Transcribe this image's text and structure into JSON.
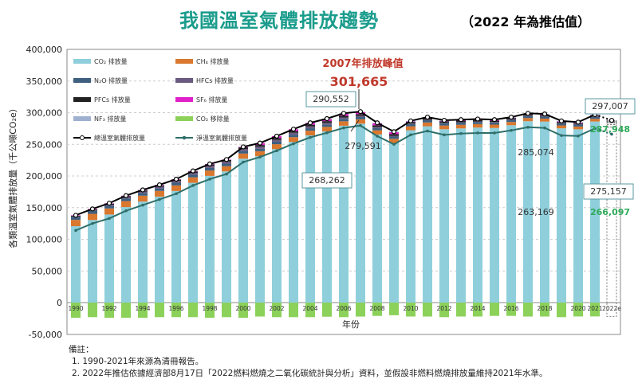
{
  "header": {
    "title": "我國溫室氣體排放趨勢",
    "subtitle": "（2022 年為推估值）"
  },
  "chart_data": {
    "type": "bar",
    "title": "我國溫室氣體排放趨勢",
    "xlabel": "年份",
    "ylabel": "各類溫室氣體排放量（千公噸CO₂e）",
    "ylim": [
      -50000,
      400000
    ],
    "yticks": [
      "-50,000",
      "0",
      "50,000",
      "100,000",
      "150,000",
      "200,000",
      "250,000",
      "300,000",
      "350,000",
      "400,000"
    ],
    "grid": true,
    "legend_position": "top-left",
    "categories": [
      1990,
      1991,
      1992,
      1993,
      1994,
      1995,
      1996,
      1997,
      1998,
      1999,
      2000,
      2001,
      2002,
      2003,
      2004,
      2005,
      2006,
      2007,
      2008,
      2009,
      2010,
      2011,
      2012,
      2013,
      2014,
      2015,
      2016,
      2017,
      2018,
      2019,
      2020,
      2021,
      2022
    ],
    "xtick_labels": [
      "1990",
      "1992",
      "1994",
      "1996",
      "1998",
      "2000",
      "2002",
      "2004",
      "2006",
      "2008",
      "2010",
      "2012",
      "2014",
      "2016",
      "2018",
      "2020",
      "2021",
      "2022e"
    ],
    "stack_series": [
      {
        "name": "CO₂ 排放量",
        "color": "#8fcfdc",
        "key": "co2"
      },
      {
        "name": "CH₄ 排放量",
        "color": "#d9782e",
        "key": "ch4"
      },
      {
        "name": "N₂O 排放量",
        "color": "#3f5f7f",
        "key": "n2o"
      },
      {
        "name": "HFCs 排放量",
        "color": "#6a5a80",
        "key": "hfc"
      },
      {
        "name": "PFCs 排放量",
        "color": "#222222",
        "key": "pfc"
      },
      {
        "name": "SF₆ 排放量",
        "color": "#e020c8",
        "key": "sf6"
      },
      {
        "name": "NF₃ 排放量",
        "color": "#9fb0d0",
        "key": "nf3"
      }
    ],
    "removal_series": {
      "name": "CO₂ 移除量",
      "color": "#8cd15a"
    },
    "total_series": {
      "name": "總溫室氣體排放量",
      "color": "#000000",
      "values": [
        138000,
        148000,
        157000,
        169000,
        178000,
        186000,
        195000,
        208000,
        219000,
        226000,
        246000,
        252000,
        263000,
        274000,
        284000,
        290552,
        299000,
        301665,
        284000,
        270000,
        287000,
        293000,
        288000,
        289000,
        290000,
        289000,
        293000,
        299000,
        298000,
        287000,
        285074,
        297007,
        287948
      ]
    },
    "net_series": {
      "name": "淨溫室氣體排放量",
      "color": "#2e6f6a",
      "values": [
        114000,
        125000,
        133000,
        145000,
        154000,
        163000,
        172000,
        185000,
        195000,
        203000,
        222000,
        230000,
        240000,
        251000,
        261000,
        268262,
        276000,
        279591,
        263000,
        250000,
        265000,
        271000,
        265000,
        267000,
        268000,
        268000,
        272000,
        277000,
        276000,
        264000,
        263169,
        275157,
        266097
      ]
    },
    "annotations": [
      {
        "text": "2007年排放峰值",
        "color": "#c0392b"
      },
      {
        "text": "301,665",
        "color": "#c0392b"
      },
      {
        "text": "290,552"
      },
      {
        "text": "268,262"
      },
      {
        "text": "279,591"
      },
      {
        "text": "285,074"
      },
      {
        "text": "263,169"
      },
      {
        "text": "297,007"
      },
      {
        "text": "275,157"
      },
      {
        "text": "287,948",
        "color": "#2eaa5a"
      },
      {
        "text": "266,097",
        "color": "#2eaa5a"
      }
    ]
  },
  "notes": {
    "heading": "備註：",
    "lines": [
      "1. 1990-2021年來源為清冊報告。",
      "2. 2022年推估依據經濟部8月17日「2022燃料燃燒之二氧化碳統計與分析」資料，並假設非燃料燃燒排放量維持2021年水準。"
    ]
  }
}
